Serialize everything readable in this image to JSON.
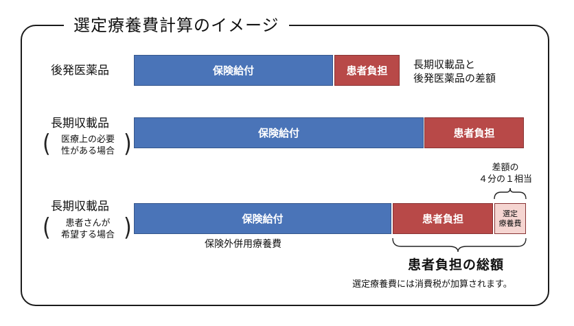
{
  "title": "選定療養費計算のイメージ",
  "rows": [
    {
      "label": "後発医薬品",
      "bars": {
        "insurance": "保険給付",
        "patient": "患者負担"
      },
      "note_lines": [
        "長期収載品と",
        "後発医薬品の差額"
      ]
    },
    {
      "label": "長期収載品",
      "sub_lines": [
        "医療上の必要",
        "性がある場合"
      ],
      "bars": {
        "insurance": "保険給付",
        "patient": "患者負担"
      }
    },
    {
      "label": "長期収載品",
      "sub_lines": [
        "患者さんが",
        "希望する場合"
      ],
      "bars": {
        "insurance": "保険給付",
        "patient": "患者負担",
        "selective_lines": [
          "選定",
          "療養費"
        ]
      },
      "quarter_lines": [
        "差額の",
        "４分の１相当"
      ],
      "below_bar": "保険外併用療養費"
    }
  ],
  "total_label": "患者負担の総額",
  "footnote": "選定療養費には消費税が加算されます。",
  "colors": {
    "insurance": "#4a74b8",
    "patient": "#b84948",
    "selective": "#f5d5d1"
  }
}
